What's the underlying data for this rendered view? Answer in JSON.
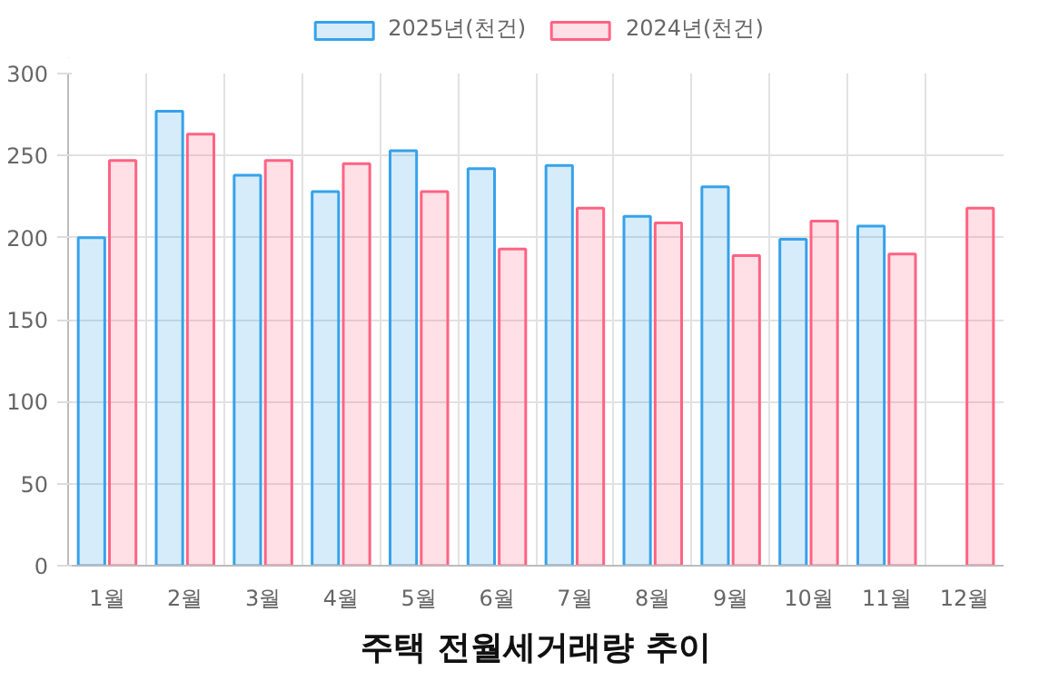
{
  "chart_data": {
    "type": "bar",
    "title": "주택 전월세거래량 추이",
    "categories": [
      "1월",
      "2월",
      "3월",
      "4월",
      "5월",
      "6월",
      "7월",
      "8월",
      "9월",
      "10월",
      "11월",
      "12월"
    ],
    "series": [
      {
        "name": "2025년(천건)",
        "color": "#36a2eb",
        "values": [
          200,
          277,
          238,
          228,
          253,
          242,
          244,
          213,
          231,
          199,
          207,
          null
        ]
      },
      {
        "name": "2024년(천건)",
        "color": "#ff6384",
        "values": [
          247,
          263,
          247,
          245,
          228,
          193,
          218,
          209,
          189,
          210,
          190,
          218
        ]
      }
    ],
    "ylim": [
      0,
      300
    ],
    "yticks": [
      0,
      50,
      100,
      150,
      200,
      250,
      300
    ],
    "grid": true,
    "legend": "top"
  }
}
